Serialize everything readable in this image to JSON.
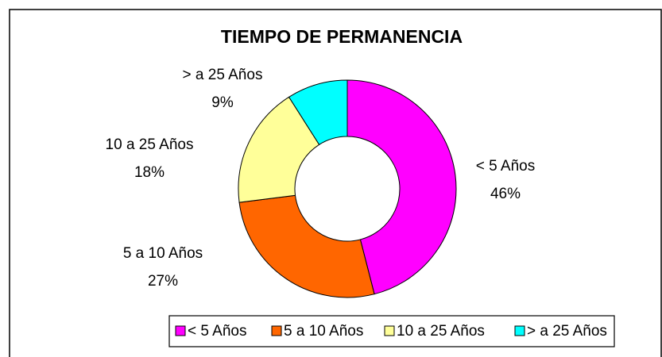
{
  "chart_data": {
    "type": "donut",
    "title": "TIEMPO DE PERMANENCIA",
    "categories": [
      "< 5 Años",
      "5 a 10 Años",
      "10 a 25 Años",
      "> a 25 Años"
    ],
    "values": [
      46,
      27,
      18,
      9
    ],
    "value_labels": [
      "46%",
      "27%",
      "18%",
      "9%"
    ],
    "colors": [
      "#ff00ff",
      "#ff6600",
      "#ffff99",
      "#00ffff"
    ],
    "legend": "bottom"
  }
}
